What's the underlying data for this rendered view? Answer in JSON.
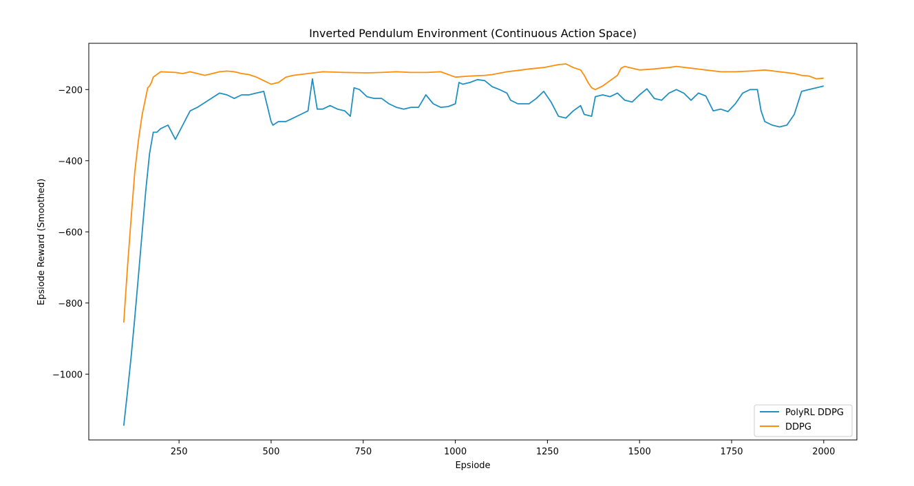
{
  "chart_data": {
    "type": "line",
    "title": "Inverted Pendulum Environment (Continuous Action Space)",
    "xlabel": "Epsiode",
    "ylabel": "Epsiode Reward (Smoothed)",
    "xlim": [
      5,
      2090
    ],
    "ylim": [
      -1185,
      -70
    ],
    "xticks": [
      250,
      500,
      750,
      1000,
      1250,
      1500,
      1750,
      2000
    ],
    "xtick_labels": [
      "250",
      "500",
      "750",
      "1000",
      "1250",
      "1500",
      "1750",
      "2000"
    ],
    "yticks": [
      -1000,
      -800,
      -600,
      -400,
      -200
    ],
    "ytick_labels": [
      "−1000",
      "−800",
      "−600",
      "−400",
      "−200"
    ],
    "legend_position": "bottom-right",
    "series": [
      {
        "name": "PolyRL DDPG",
        "color": "#1f8fc2",
        "x": [
          100,
          110,
          120,
          130,
          140,
          150,
          160,
          170,
          180,
          190,
          200,
          220,
          240,
          260,
          280,
          300,
          330,
          360,
          380,
          400,
          420,
          440,
          460,
          480,
          500,
          505,
          520,
          540,
          560,
          580,
          600,
          612,
          625,
          640,
          660,
          680,
          700,
          715,
          725,
          740,
          760,
          780,
          800,
          820,
          840,
          860,
          880,
          900,
          920,
          940,
          960,
          980,
          1000,
          1010,
          1020,
          1040,
          1060,
          1080,
          1100,
          1120,
          1140,
          1150,
          1170,
          1200,
          1220,
          1240,
          1260,
          1280,
          1300,
          1320,
          1340,
          1350,
          1370,
          1380,
          1400,
          1420,
          1440,
          1460,
          1480,
          1500,
          1520,
          1540,
          1560,
          1580,
          1600,
          1620,
          1640,
          1660,
          1680,
          1700,
          1720,
          1740,
          1760,
          1780,
          1800,
          1820,
          1830,
          1840,
          1860,
          1880,
          1900,
          1920,
          1940,
          1960,
          1980,
          2000
        ],
        "y": [
          -1145,
          -1050,
          -950,
          -840,
          -720,
          -600,
          -480,
          -380,
          -320,
          -320,
          -310,
          -300,
          -340,
          -300,
          -260,
          -250,
          -230,
          -210,
          -215,
          -225,
          -215,
          -215,
          -210,
          -205,
          -290,
          -300,
          -290,
          -290,
          -280,
          -270,
          -260,
          -170,
          -255,
          -255,
          -245,
          -255,
          -260,
          -275,
          -195,
          -200,
          -220,
          -225,
          -225,
          -240,
          -250,
          -255,
          -250,
          -250,
          -215,
          -240,
          -250,
          -248,
          -240,
          -180,
          -185,
          -180,
          -172,
          -175,
          -192,
          -200,
          -210,
          -230,
          -240,
          -240,
          -225,
          -205,
          -235,
          -275,
          -280,
          -260,
          -245,
          -270,
          -275,
          -220,
          -215,
          -220,
          -210,
          -230,
          -235,
          -215,
          -198,
          -225,
          -230,
          -210,
          -200,
          -210,
          -230,
          -210,
          -218,
          -260,
          -255,
          -262,
          -240,
          -210,
          -200,
          -200,
          -260,
          -290,
          -300,
          -305,
          -300,
          -270,
          -205,
          -200,
          -195,
          -190
        ]
      },
      {
        "name": "DDPG",
        "color": "#ff8c0a",
        "x": [
          100,
          110,
          120,
          130,
          140,
          150,
          160,
          165,
          170,
          175,
          180,
          200,
          240,
          260,
          280,
          300,
          320,
          360,
          380,
          400,
          420,
          440,
          460,
          480,
          500,
          520,
          540,
          560,
          600,
          640,
          700,
          760,
          800,
          840,
          880,
          920,
          960,
          1000,
          1040,
          1080,
          1100,
          1140,
          1180,
          1200,
          1240,
          1280,
          1300,
          1320,
          1340,
          1350,
          1360,
          1370,
          1380,
          1400,
          1420,
          1440,
          1450,
          1460,
          1480,
          1500,
          1540,
          1560,
          1580,
          1600,
          1640,
          1680,
          1720,
          1760,
          1800,
          1840,
          1880,
          1920,
          1940,
          1960,
          1980,
          2000
        ],
        "y": [
          -855,
          -700,
          -560,
          -430,
          -340,
          -270,
          -220,
          -195,
          -190,
          -180,
          -165,
          -150,
          -152,
          -155,
          -150,
          -155,
          -160,
          -150,
          -148,
          -150,
          -155,
          -158,
          -165,
          -175,
          -185,
          -180,
          -165,
          -160,
          -155,
          -150,
          -152,
          -153,
          -152,
          -150,
          -152,
          -152,
          -150,
          -165,
          -162,
          -160,
          -158,
          -150,
          -145,
          -142,
          -138,
          -130,
          -128,
          -138,
          -145,
          -160,
          -180,
          -195,
          -200,
          -190,
          -175,
          -160,
          -140,
          -135,
          -140,
          -145,
          -142,
          -140,
          -138,
          -135,
          -140,
          -145,
          -150,
          -150,
          -148,
          -145,
          -150,
          -155,
          -160,
          -162,
          -170,
          -168
        ]
      }
    ]
  }
}
